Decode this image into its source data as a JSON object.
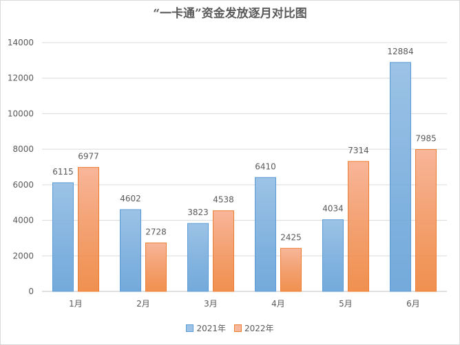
{
  "chart_data": {
    "type": "bar",
    "title": "“一卡通”资金发放逐月对比图",
    "categories": [
      "1月",
      "2月",
      "3月",
      "4月",
      "5月",
      "6月"
    ],
    "series": [
      {
        "name": "2021年",
        "values": [
          6115,
          4602,
          3823,
          6410,
          4034,
          12884
        ],
        "color": "#9dc3e6",
        "stroke": "#5b9bd5"
      },
      {
        "name": "2022年",
        "values": [
          6977,
          2728,
          4538,
          2425,
          7314,
          7985
        ],
        "color": "#f8b69a",
        "stroke": "#ed7d31"
      }
    ],
    "ylim": [
      0,
      14000
    ],
    "yticks": [
      0,
      2000,
      4000,
      6000,
      8000,
      10000,
      12000,
      14000
    ],
    "grid": true,
    "legend": "bottom",
    "data_labels": true
  }
}
